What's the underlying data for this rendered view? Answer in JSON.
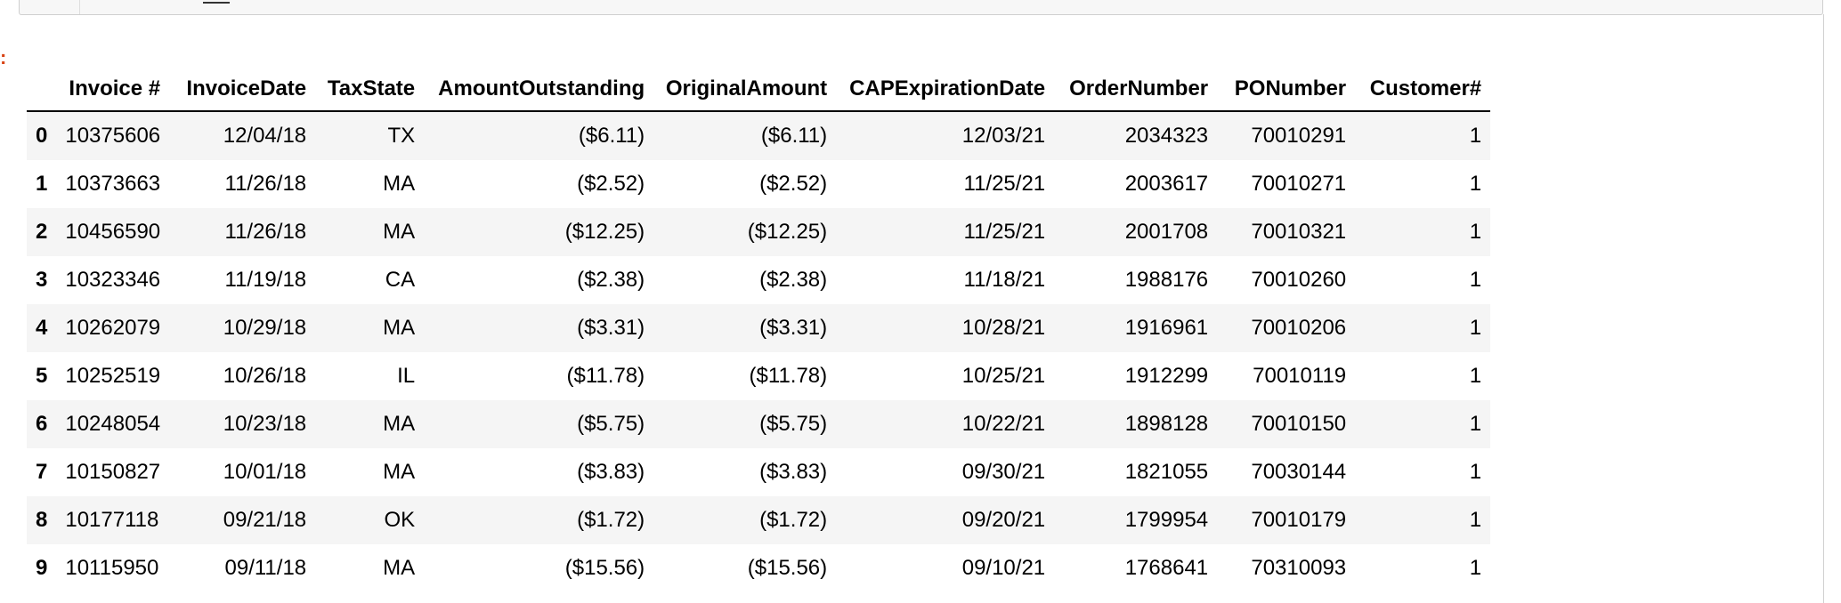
{
  "output_prompt": ":",
  "table": {
    "columns": [
      "",
      "Invoice #",
      "InvoiceDate",
      "TaxState",
      "AmountOutstanding",
      "OriginalAmount",
      "CAPExpirationDate",
      "OrderNumber",
      "PONumber",
      "Customer#"
    ],
    "rows": [
      {
        "index": "0",
        "invoice": "10375606",
        "invoice_date": "12/04/18",
        "tax_state": "TX",
        "amount_outstanding": "($6.11)",
        "original_amount": "($6.11)",
        "cap_expiration_date": "12/03/21",
        "order_number": "2034323",
        "po_number": "70010291",
        "customer": "1"
      },
      {
        "index": "1",
        "invoice": "10373663",
        "invoice_date": "11/26/18",
        "tax_state": "MA",
        "amount_outstanding": "($2.52)",
        "original_amount": "($2.52)",
        "cap_expiration_date": "11/25/21",
        "order_number": "2003617",
        "po_number": "70010271",
        "customer": "1"
      },
      {
        "index": "2",
        "invoice": "10456590",
        "invoice_date": "11/26/18",
        "tax_state": "MA",
        "amount_outstanding": "($12.25)",
        "original_amount": "($12.25)",
        "cap_expiration_date": "11/25/21",
        "order_number": "2001708",
        "po_number": "70010321",
        "customer": "1"
      },
      {
        "index": "3",
        "invoice": "10323346",
        "invoice_date": "11/19/18",
        "tax_state": "CA",
        "amount_outstanding": "($2.38)",
        "original_amount": "($2.38)",
        "cap_expiration_date": "11/18/21",
        "order_number": "1988176",
        "po_number": "70010260",
        "customer": "1"
      },
      {
        "index": "4",
        "invoice": "10262079",
        "invoice_date": "10/29/18",
        "tax_state": "MA",
        "amount_outstanding": "($3.31)",
        "original_amount": "($3.31)",
        "cap_expiration_date": "10/28/21",
        "order_number": "1916961",
        "po_number": "70010206",
        "customer": "1"
      },
      {
        "index": "5",
        "invoice": "10252519",
        "invoice_date": "10/26/18",
        "tax_state": "IL",
        "amount_outstanding": "($11.78)",
        "original_amount": "($11.78)",
        "cap_expiration_date": "10/25/21",
        "order_number": "1912299",
        "po_number": "70010119",
        "customer": "1"
      },
      {
        "index": "6",
        "invoice": "10248054",
        "invoice_date": "10/23/18",
        "tax_state": "MA",
        "amount_outstanding": "($5.75)",
        "original_amount": "($5.75)",
        "cap_expiration_date": "10/22/21",
        "order_number": "1898128",
        "po_number": "70010150",
        "customer": "1"
      },
      {
        "index": "7",
        "invoice": "10150827",
        "invoice_date": "10/01/18",
        "tax_state": "MA",
        "amount_outstanding": "($3.83)",
        "original_amount": "($3.83)",
        "cap_expiration_date": "09/30/21",
        "order_number": "1821055",
        "po_number": "70030144",
        "customer": "1"
      },
      {
        "index": "8",
        "invoice": "10177118",
        "invoice_date": "09/21/18",
        "tax_state": "OK",
        "amount_outstanding": "($1.72)",
        "original_amount": "($1.72)",
        "cap_expiration_date": "09/20/21",
        "order_number": "1799954",
        "po_number": "70010179",
        "customer": "1"
      },
      {
        "index": "9",
        "invoice": "10115950",
        "invoice_date": "09/11/18",
        "tax_state": "MA",
        "amount_outstanding": "($15.56)",
        "original_amount": "($15.56)",
        "cap_expiration_date": "09/10/21",
        "order_number": "1768641",
        "po_number": "70310093",
        "customer": "1"
      }
    ]
  },
  "colors": {
    "prompt": "#d84315",
    "stripe": "#f5f5f5",
    "border": "#d0d0d0"
  }
}
